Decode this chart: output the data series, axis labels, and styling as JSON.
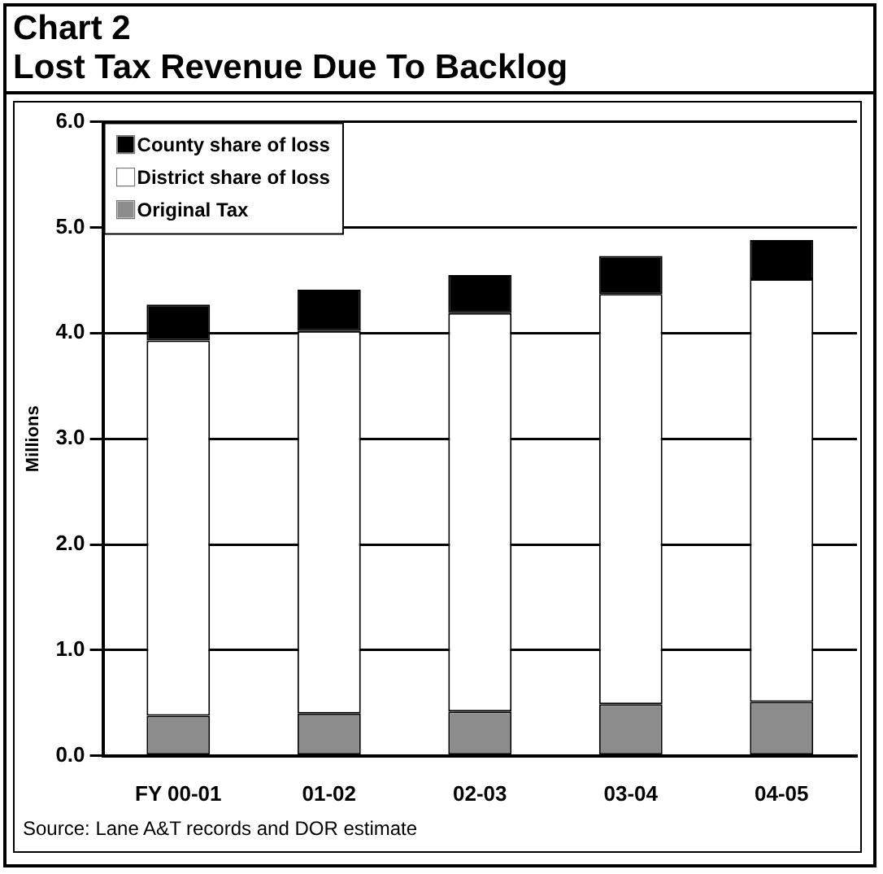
{
  "chart_data": {
    "type": "bar",
    "title": "Chart 2",
    "subtitle": "Lost Tax Revenue Due To Backlog",
    "ylabel": "Millions",
    "categories": [
      "FY 00-01",
      "01-02",
      "02-03",
      "03-04",
      "04-05"
    ],
    "stacked": true,
    "series": [
      {
        "name": "Original Tax",
        "color": "#8c8c8c",
        "values": [
          0.38,
          0.4,
          0.42,
          0.49,
          0.51
        ]
      },
      {
        "name": "District share of loss",
        "color": "#ffffff",
        "values": [
          3.55,
          3.62,
          3.77,
          3.88,
          4.0
        ]
      },
      {
        "name": "County share of loss",
        "color": "#000000",
        "values": [
          0.34,
          0.39,
          0.36,
          0.36,
          0.37
        ]
      }
    ],
    "ylim": [
      0,
      6
    ],
    "yticks": [
      {
        "value": 0,
        "label": "0.0"
      },
      {
        "value": 1,
        "label": "1.0"
      },
      {
        "value": 2,
        "label": "2.0"
      },
      {
        "value": 3,
        "label": "3.0"
      },
      {
        "value": 4,
        "label": "4.0"
      },
      {
        "value": 5,
        "label": "5.0"
      },
      {
        "value": 6,
        "label": "6.0"
      }
    ],
    "grid": "y",
    "legend": "top left",
    "annotations": [
      "Source: Lane A&T records and DOR estimate"
    ]
  }
}
